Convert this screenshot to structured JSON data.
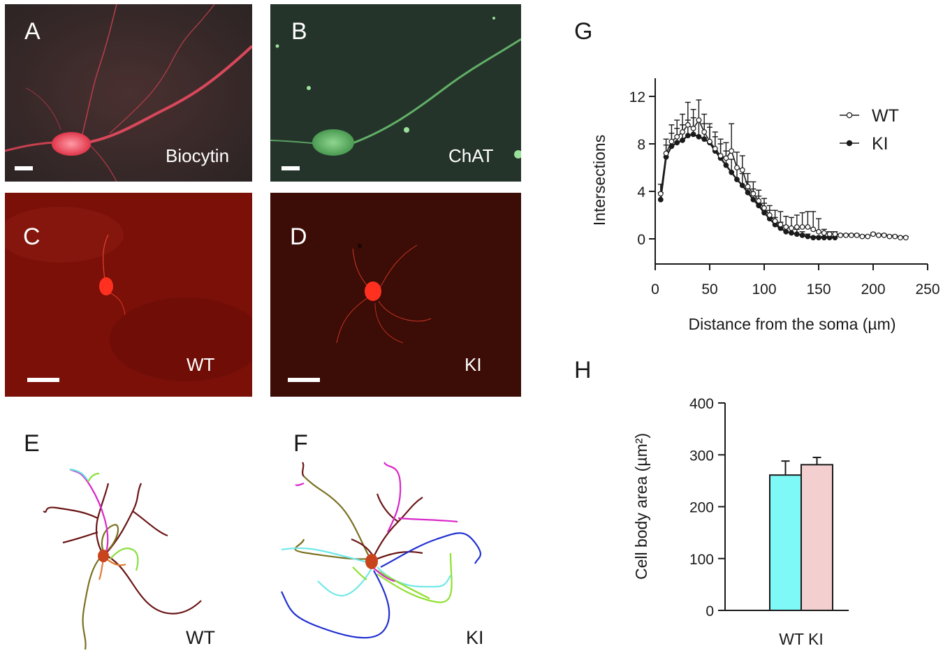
{
  "panels": {
    "A": {
      "letter": "A",
      "stain": "Biocytin"
    },
    "B": {
      "letter": "B",
      "stain": "ChAT"
    },
    "C": {
      "letter": "C",
      "genotype": "WT"
    },
    "D": {
      "letter": "D",
      "genotype": "KI"
    },
    "E": {
      "letter": "E",
      "genotype": "WT"
    },
    "F": {
      "letter": "F",
      "genotype": "KI"
    },
    "G": {
      "letter": "G"
    },
    "H": {
      "letter": "H"
    }
  },
  "colors": {
    "wt_bar": "#7ff8f8",
    "ki_bar": "#f4cfd0",
    "biocytin": "#e8485a",
    "chat": "#7fc97f"
  },
  "chart_data": [
    {
      "type": "line",
      "panel": "G",
      "xlabel": "Distance from the soma (µm)",
      "ylabel": "Intersections",
      "xlim": [
        0,
        250
      ],
      "ylim": [
        -2,
        13
      ],
      "xticks": [
        0,
        50,
        100,
        150,
        200,
        250
      ],
      "yticks": [
        0,
        4,
        8,
        12
      ],
      "legend_position": "top-right",
      "series": [
        {
          "name": "WT",
          "marker": "open-circle",
          "x": [
            5,
            10,
            15,
            20,
            25,
            30,
            35,
            40,
            45,
            50,
            55,
            60,
            65,
            70,
            75,
            80,
            85,
            90,
            95,
            100,
            105,
            110,
            115,
            120,
            125,
            130,
            135,
            140,
            145,
            150,
            155,
            160,
            165,
            170,
            175,
            180,
            185,
            190,
            195,
            200,
            205,
            210,
            215,
            220,
            225,
            230
          ],
          "y": [
            3.8,
            7.2,
            8.2,
            8.6,
            9.0,
            9.6,
            9.3,
            10.0,
            9.0,
            8.2,
            7.6,
            7.0,
            6.8,
            7.4,
            6.0,
            5.8,
            4.4,
            3.8,
            3.2,
            2.6,
            2.0,
            1.5,
            1.2,
            1.0,
            0.9,
            1.0,
            1.0,
            1.0,
            0.8,
            0.6,
            0.5,
            0.4,
            0.4,
            0.3,
            0.3,
            0.3,
            0.3,
            0.2,
            0.2,
            0.4,
            0.3,
            0.3,
            0.2,
            0.2,
            0.1,
            0.1
          ],
          "err": [
            0.8,
            1.2,
            1.4,
            1.4,
            1.5,
            1.9,
            1.6,
            1.7,
            1.5,
            1.5,
            1.4,
            1.4,
            1.3,
            2.3,
            1.3,
            1.2,
            1.1,
            1.0,
            0.9,
            0.8,
            0.8,
            0.9,
            1.1,
            0.9,
            0.9,
            1.0,
            1.2,
            1.3,
            1.5,
            1.1,
            0.3,
            0.2,
            0.2,
            0.1,
            0.1,
            0.1,
            0.1,
            0.1,
            0.1,
            0.1,
            0.1,
            0.1,
            0.1,
            0.1,
            0.1,
            0.1
          ]
        },
        {
          "name": "KI",
          "marker": "filled-circle",
          "x": [
            5,
            10,
            15,
            20,
            25,
            30,
            35,
            40,
            45,
            50,
            55,
            60,
            65,
            70,
            75,
            80,
            85,
            90,
            95,
            100,
            105,
            110,
            115,
            120,
            125,
            130,
            135,
            140,
            145,
            150,
            155,
            160,
            165
          ],
          "y": [
            3.3,
            6.9,
            7.8,
            8.1,
            8.3,
            8.7,
            8.8,
            8.6,
            8.4,
            8.1,
            7.4,
            6.8,
            6.2,
            5.6,
            5.0,
            4.5,
            3.9,
            3.3,
            2.8,
            2.2,
            1.7,
            1.2,
            0.9,
            0.6,
            0.5,
            0.4,
            0.3,
            0.2,
            0.1,
            0.1,
            0.1,
            0.1,
            0.1
          ],
          "err": [
            0.6,
            1.0,
            1.1,
            1.2,
            1.3,
            1.3,
            1.4,
            1.4,
            1.3,
            1.3,
            1.2,
            1.2,
            1.2,
            1.1,
            1.0,
            1.0,
            0.9,
            0.9,
            0.8,
            0.8,
            0.7,
            0.6,
            0.5,
            0.5,
            0.4,
            0.4,
            0.3,
            0.2,
            0.1,
            0.1,
            0.1,
            0.1,
            0.1
          ]
        }
      ]
    },
    {
      "type": "bar",
      "panel": "H",
      "categories": [
        "WT",
        "KI"
      ],
      "category_label": "WT KI",
      "values": [
        261,
        281
      ],
      "errors": [
        27,
        14
      ],
      "ylabel": "Cell body area (µm²)",
      "ylim": [
        0,
        400
      ],
      "yticks": [
        0,
        100,
        200,
        300,
        400
      ]
    }
  ]
}
